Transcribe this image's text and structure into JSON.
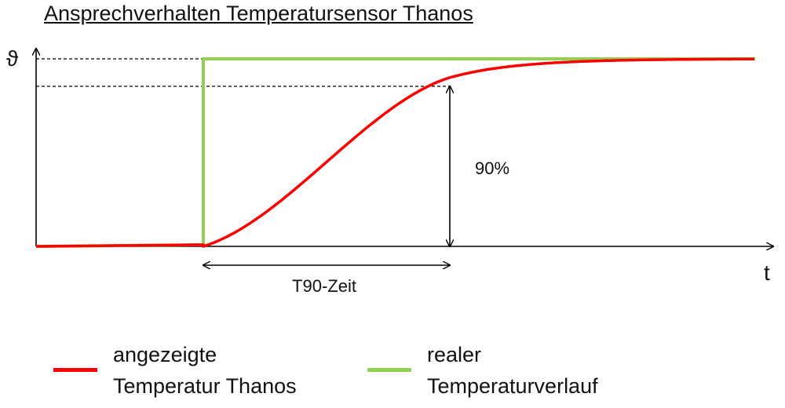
{
  "chart_data": {
    "type": "line",
    "title": "Ansprechverhalten Temperatursensor Thanos",
    "xlabel": "t",
    "ylabel": "ϑ",
    "grid": false,
    "legend_position": "bottom",
    "annotations": {
      "percent_label": "90%",
      "t90_label": "T90-Zeit"
    },
    "series": [
      {
        "name": "angezeigte Temperatur Thanos",
        "color": "#ff0000"
      },
      {
        "name": "realer Temperaturverlauf",
        "color": "#92d050"
      }
    ]
  },
  "legend": [
    {
      "text": "angezeigte\nTemperatur Thanos",
      "color": "#ff0000"
    },
    {
      "text": "realer\nTemperaturverlauf",
      "color": "#92d050"
    }
  ]
}
